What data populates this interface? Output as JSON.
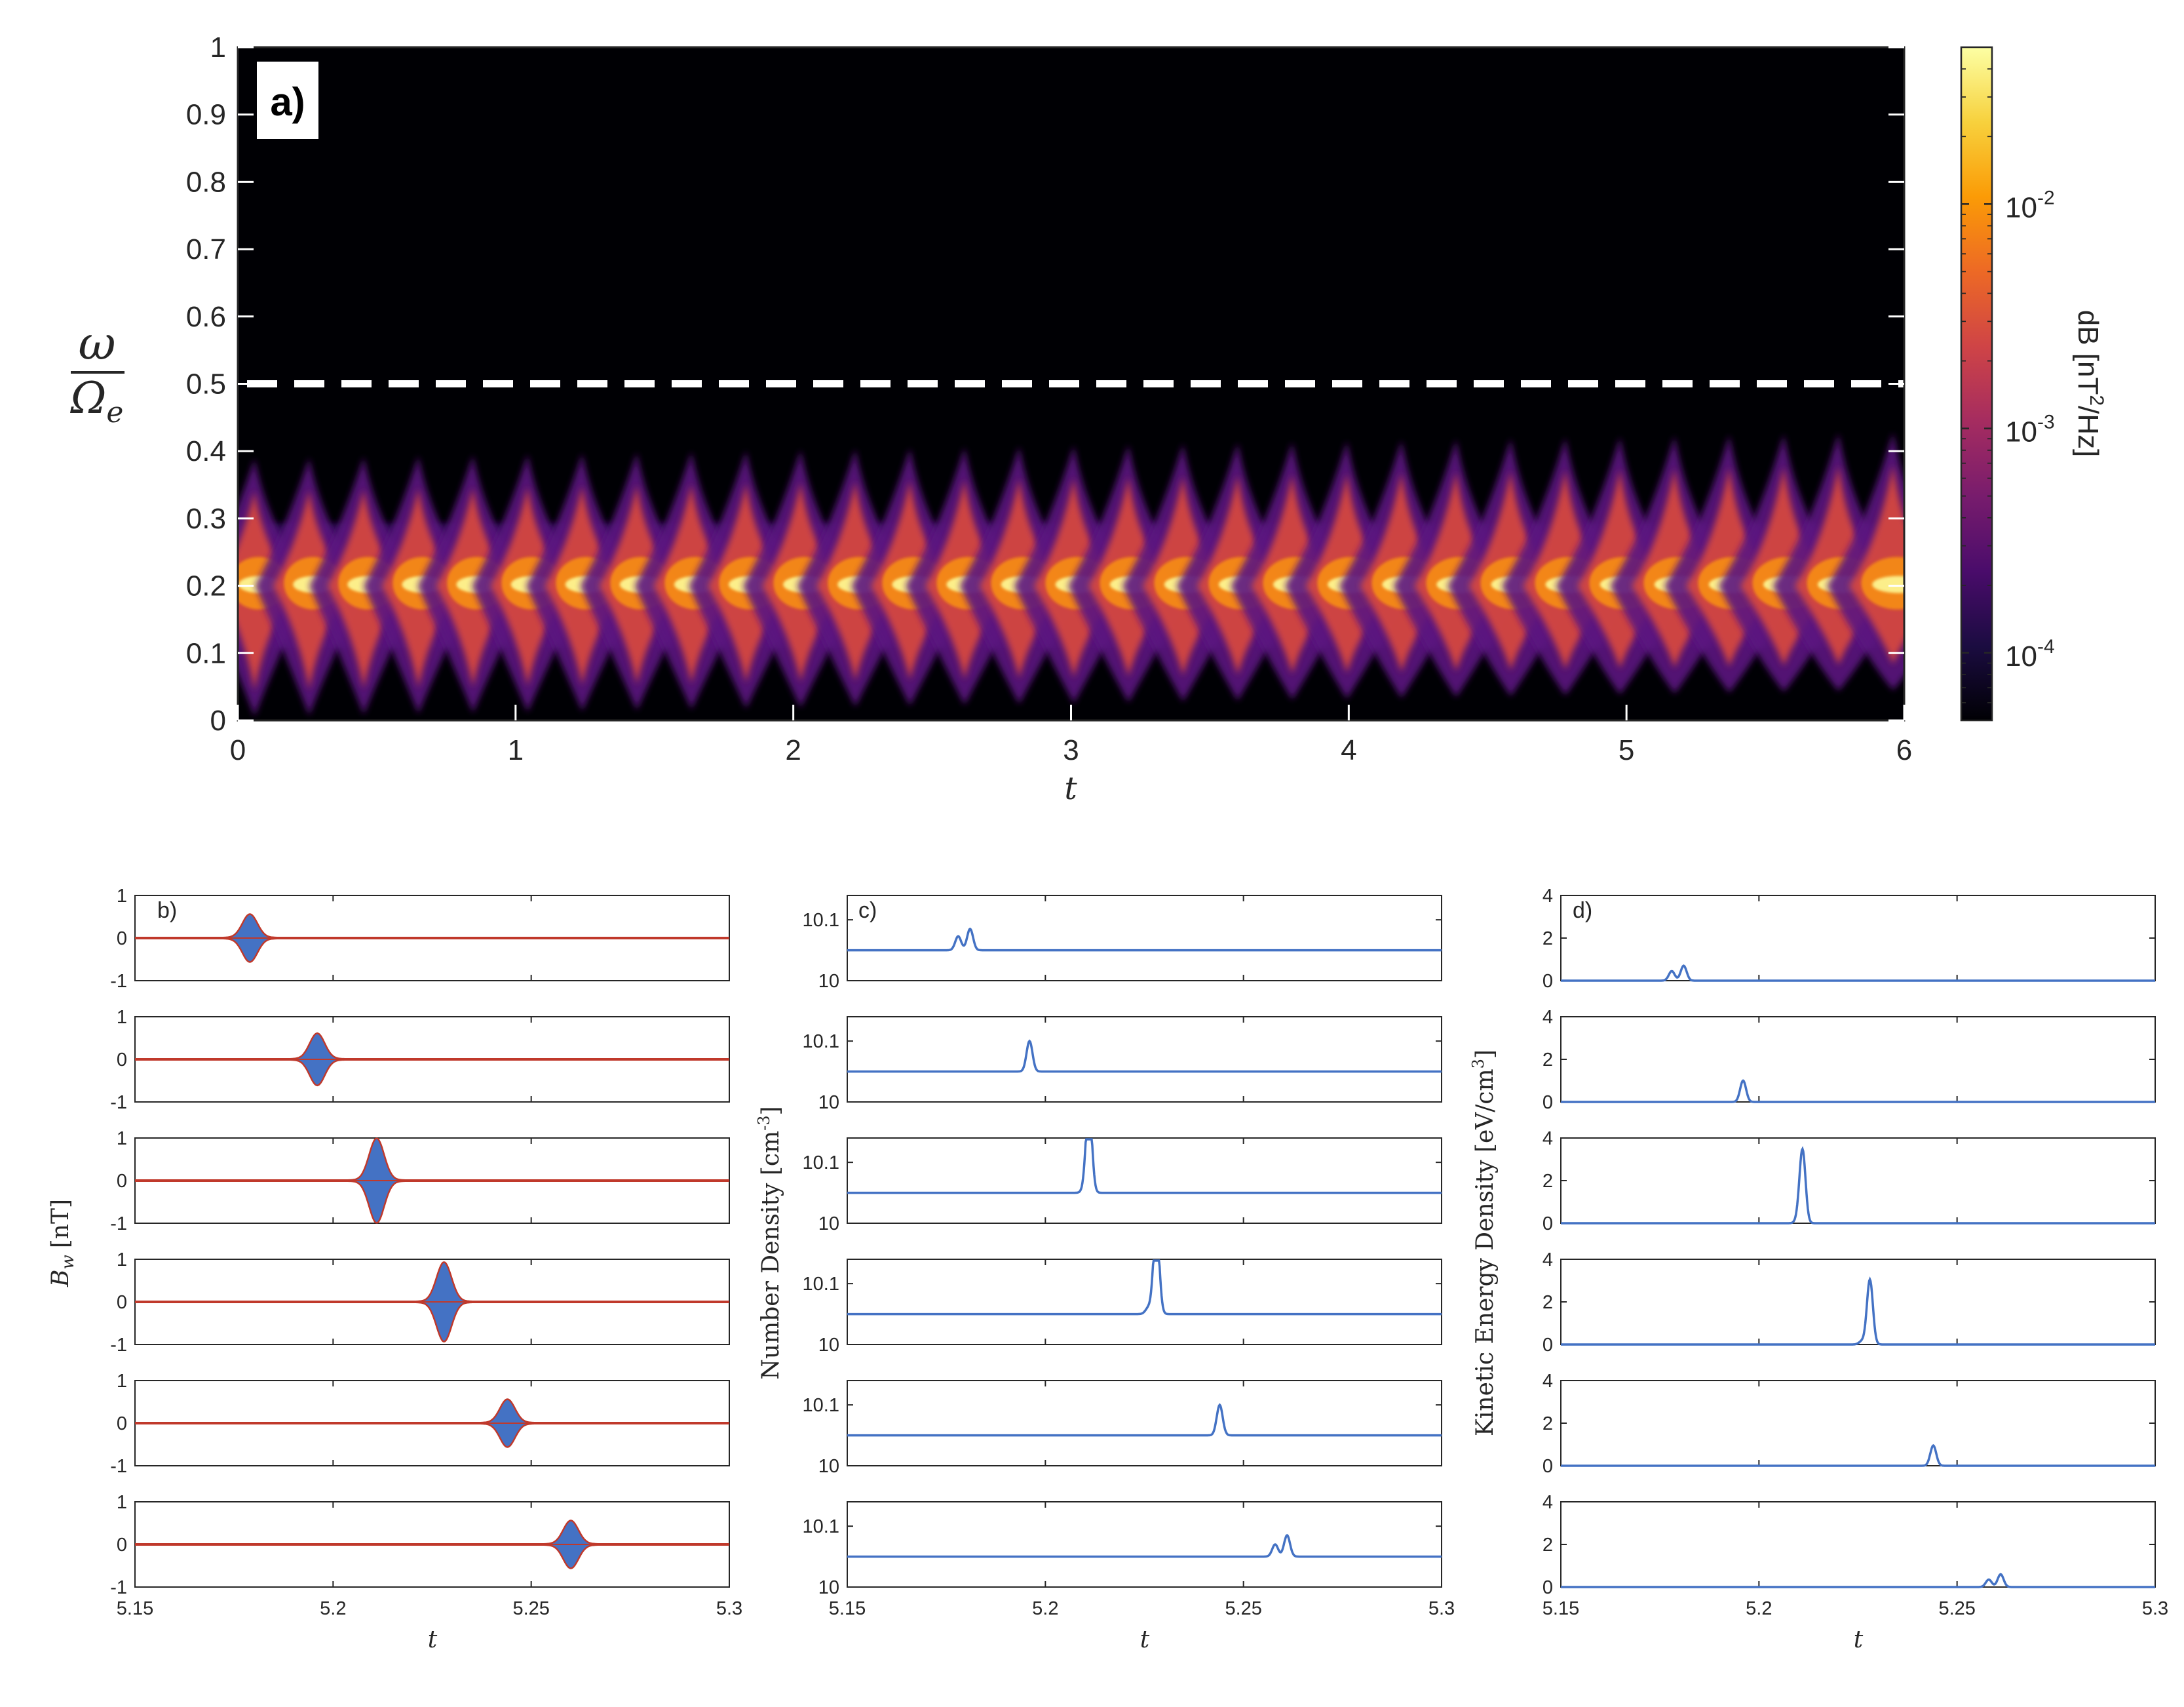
{
  "chart_data": [
    {
      "type": "heatmap",
      "panel_label": "a)",
      "xlabel": "t",
      "ylabel": "ω / Ωe",
      "ylabel_num": "ω",
      "ylabel_den": "Ω",
      "ylabel_den_sub": "e",
      "xlim": [
        0,
        6
      ],
      "ylim": [
        0,
        1
      ],
      "xticks": [
        "0",
        "1",
        "2",
        "3",
        "4",
        "5",
        "6"
      ],
      "yticks": [
        "0",
        "0.1",
        "0.2",
        "0.3",
        "0.4",
        "0.5",
        "0.6",
        "0.7",
        "0.8",
        "0.9",
        "1"
      ],
      "reference_line": {
        "y": 0.5,
        "style": "dashed",
        "color": "#ffffff"
      },
      "emission_band": {
        "center": 0.2,
        "extent": [
          0.0,
          0.42
        ]
      },
      "bursts": {
        "t_start": 0.06,
        "t_end": 5.96,
        "count": 31,
        "brightest_at_t": 6.0
      },
      "colorbar": {
        "label": "dB [nT²/Hz]",
        "label_pre": "dB [nT",
        "label_sup": "2",
        "label_post": "/Hz]",
        "scale": "log",
        "range": [
          5e-05,
          0.05
        ],
        "ticks": [
          {
            "value": 0.0001,
            "base": "10",
            "exp": "-4"
          },
          {
            "value": 0.001,
            "base": "10",
            "exp": "-3"
          },
          {
            "value": 0.01,
            "base": "10",
            "exp": "-2"
          }
        ],
        "colormap": [
          "#000004",
          "#1b0c41",
          "#4a0c6b",
          "#781c6d",
          "#a52c60",
          "#cf4446",
          "#ed6925",
          "#fb9b06",
          "#f7d13d",
          "#fcffa4"
        ]
      }
    },
    {
      "type": "line",
      "panel_label": "b)",
      "ylabel": "B",
      "ylabel_sub": "w",
      "ylabel_unit": "[nT]",
      "xlabel": "t",
      "xlim": [
        5.15,
        5.3
      ],
      "ylim": [
        -1,
        1
      ],
      "xticks": [
        "5.15",
        "5.2",
        "5.25",
        "5.3"
      ],
      "yticks": [
        "-1",
        "0",
        "1"
      ],
      "series": [
        {
          "center": 5.179,
          "amplitude": 0.55
        },
        {
          "center": 5.196,
          "amplitude": 0.6
        },
        {
          "center": 5.211,
          "amplitude": 0.98
        },
        {
          "center": 5.228,
          "amplitude": 0.92
        },
        {
          "center": 5.244,
          "amplitude": 0.55
        },
        {
          "center": 5.26,
          "amplitude": 0.55
        }
      ],
      "colors": {
        "fill": "#4472c4",
        "envelope": "#c0392b"
      }
    },
    {
      "type": "line",
      "panel_label": "c)",
      "ylabel": "Number Density [cm⁻³]",
      "ylabel_pre": "Number Density [cm",
      "ylabel_sup": "-3",
      "ylabel_post": "]",
      "xlabel": "t",
      "xlim": [
        5.15,
        5.3
      ],
      "ylim": [
        10.0,
        10.14
      ],
      "xticks": [
        "5.15",
        "5.2",
        "5.25",
        "5.3"
      ],
      "yticks": [
        "10",
        "10.1"
      ],
      "baseline": 10.05,
      "series": [
        {
          "peaks": [
            [
              5.178,
              10.073
            ],
            [
              5.181,
              10.085
            ]
          ]
        },
        {
          "peaks": [
            [
              5.196,
              10.1
            ]
          ]
        },
        {
          "peaks": [
            [
              5.21,
              10.055
            ],
            [
              5.211,
              10.195
            ]
          ]
        },
        {
          "peaks": [
            [
              5.226,
              10.06
            ],
            [
              5.228,
              10.195
            ]
          ]
        },
        {
          "peaks": [
            [
              5.244,
              10.1
            ]
          ]
        },
        {
          "peaks": [
            [
              5.258,
              10.07
            ],
            [
              5.261,
              10.085
            ]
          ]
        }
      ],
      "color": "#4472c4"
    },
    {
      "type": "line",
      "panel_label": "d)",
      "ylabel": "Kinetic Energy Density [eV/cm³]",
      "ylabel_pre": "Kinetic Energy Density [eV/cm",
      "ylabel_sup": "3",
      "ylabel_post": "]",
      "xlabel": "t",
      "xlim": [
        5.15,
        5.3
      ],
      "ylim": [
        0,
        4
      ],
      "xticks": [
        "5.15",
        "5.2",
        "5.25",
        "5.3"
      ],
      "yticks": [
        "0",
        "2",
        "4"
      ],
      "baseline": 0.0,
      "series": [
        {
          "peaks": [
            [
              5.178,
              0.45
            ],
            [
              5.181,
              0.7
            ]
          ]
        },
        {
          "peaks": [
            [
              5.196,
              1.0
            ]
          ]
        },
        {
          "peaks": [
            [
              5.21,
              0.2
            ],
            [
              5.211,
              3.4
            ]
          ]
        },
        {
          "peaks": [
            [
              5.226,
              0.15
            ],
            [
              5.228,
              3.05
            ]
          ]
        },
        {
          "peaks": [
            [
              5.244,
              0.95
            ]
          ]
        },
        {
          "peaks": [
            [
              5.258,
              0.35
            ],
            [
              5.261,
              0.6
            ]
          ]
        }
      ],
      "color": "#4472c4"
    }
  ]
}
